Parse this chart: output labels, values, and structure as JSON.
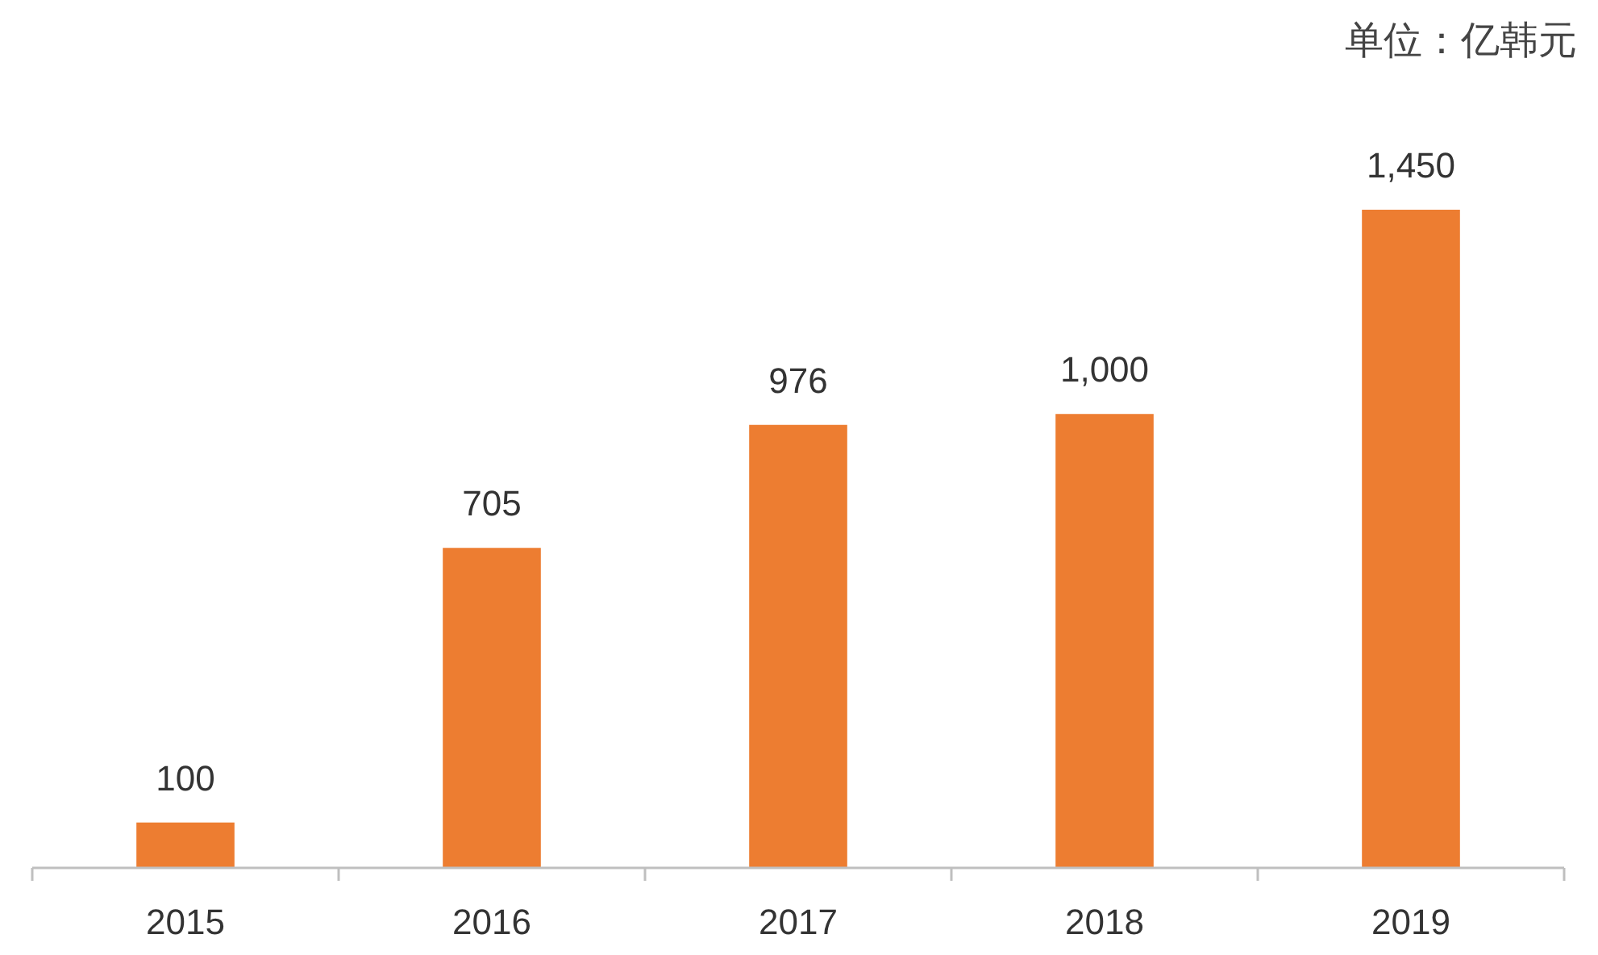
{
  "chart_data": {
    "type": "bar",
    "categories": [
      "2015",
      "2016",
      "2017",
      "2018",
      "2019"
    ],
    "values": [
      100,
      705,
      976,
      1000,
      1450
    ],
    "color": "#ed7d31",
    "value_labels": [
      "100",
      "705",
      "976",
      "1,000",
      "1,450"
    ],
    "annotations": [
      "单位：亿韩元"
    ]
  }
}
